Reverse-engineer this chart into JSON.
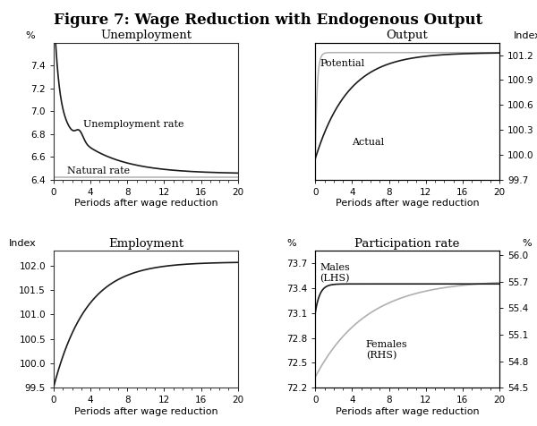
{
  "title": "Figure 7: Wage Reduction with Endogenous Output",
  "title_fontsize": 12,
  "xlabel": "Periods after wage reduction",
  "panels": {
    "unemployment": {
      "title": "Unemployment",
      "ylabel_left": "%",
      "ylim": [
        6.4,
        7.6
      ],
      "yticks": [
        6.4,
        6.6,
        6.8,
        7.0,
        7.2,
        7.4
      ],
      "xlim": [
        0,
        20
      ],
      "xticks": [
        0,
        4,
        8,
        12,
        16,
        20
      ],
      "unemp_label": "Unemployment rate",
      "natural_label": "Natural rate",
      "natural_rate": 6.42
    },
    "output": {
      "title": "Output",
      "ylabel_right": "Index",
      "ylim": [
        99.7,
        101.35
      ],
      "yticks": [
        99.7,
        100.0,
        100.3,
        100.6,
        100.9,
        101.2
      ],
      "xlim": [
        0,
        20
      ],
      "xticks": [
        0,
        4,
        8,
        12,
        16,
        20
      ],
      "potential_label": "Potential",
      "actual_label": "Actual"
    },
    "employment": {
      "title": "Employment",
      "ylabel_left": "Index",
      "ylim": [
        99.5,
        102.3
      ],
      "yticks": [
        99.5,
        100.0,
        100.5,
        101.0,
        101.5,
        102.0
      ],
      "xlim": [
        0,
        20
      ],
      "xticks": [
        0,
        4,
        8,
        12,
        16,
        20
      ]
    },
    "participation": {
      "title": "Participation rate",
      "ylabel_left": "%",
      "ylabel_right": "%",
      "ylim_left": [
        72.2,
        73.85
      ],
      "ylim_right": [
        54.5,
        56.05
      ],
      "yticks_left": [
        72.2,
        72.5,
        72.8,
        73.1,
        73.4,
        73.7
      ],
      "yticks_right": [
        54.5,
        54.8,
        55.1,
        55.4,
        55.7,
        56.0
      ],
      "xlim": [
        0,
        20
      ],
      "xticks": [
        0,
        4,
        8,
        12,
        16,
        20
      ],
      "males_label": "Males\n(LHS)",
      "females_label": "Females\n(RHS)"
    }
  },
  "line_color_dark": "#1a1a1a",
  "line_color_light": "#b0b0b0",
  "bg_color": "#ffffff"
}
